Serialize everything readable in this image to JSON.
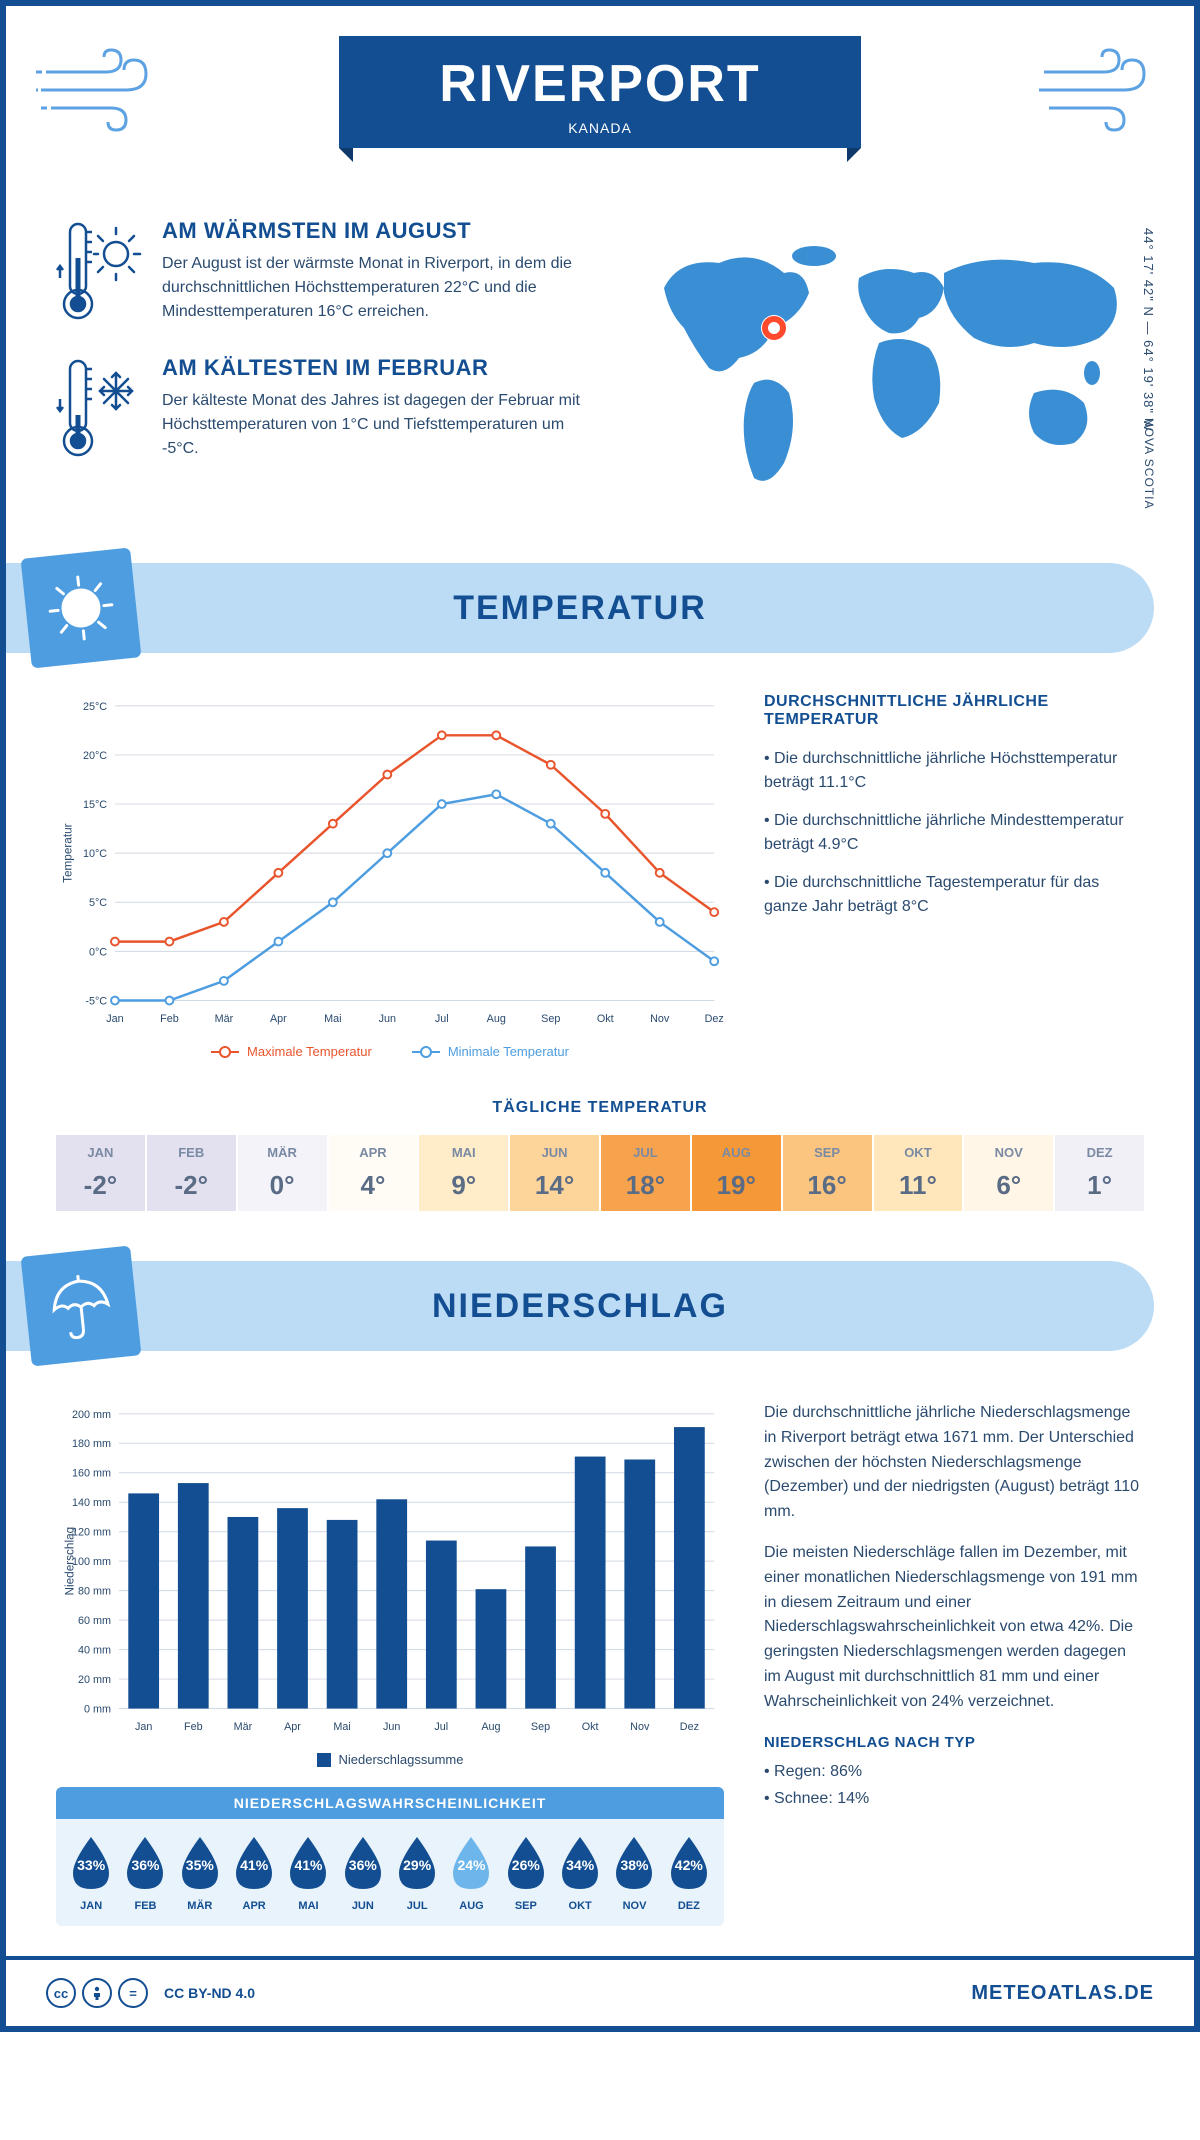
{
  "header": {
    "title": "RIVERPORT",
    "subtitle": "KANADA",
    "coords": "44° 17' 42\" N — 64° 19' 38\" W",
    "region": "NOVA SCOTIA"
  },
  "intro": {
    "warm": {
      "heading": "AM WÄRMSTEN IM AUGUST",
      "text": "Der August ist der wärmste Monat in Riverport, in dem die durchschnittlichen Höchsttemperaturen 22°C und die Mindesttemperaturen 16°C erreichen."
    },
    "cold": {
      "heading": "AM KÄLTESTEN IM FEBRUAR",
      "text": "Der kälteste Monat des Jahres ist dagegen der Februar mit Höchsttemperaturen von 1°C und Tiefsttemperaturen um -5°C."
    }
  },
  "colors": {
    "primary": "#124e91",
    "accent": "#4d9de0",
    "light": "#bcdcf5",
    "max_line": "#e8552d",
    "min_line": "#4d9de0",
    "bar": "#124e91",
    "grid": "#d0d8e2"
  },
  "months": [
    "Jan",
    "Feb",
    "Mär",
    "Apr",
    "Mai",
    "Jun",
    "Jul",
    "Aug",
    "Sep",
    "Okt",
    "Nov",
    "Dez"
  ],
  "months_upper": [
    "JAN",
    "FEB",
    "MÄR",
    "APR",
    "MAI",
    "JUN",
    "JUL",
    "AUG",
    "SEP",
    "OKT",
    "NOV",
    "DEZ"
  ],
  "temperature": {
    "section_title": "TEMPERATUR",
    "yaxis_label": "Temperatur",
    "ylim": [
      -5,
      25
    ],
    "ytick_step": 5,
    "ytick_suffix": "°C",
    "max_series": [
      1,
      1,
      3,
      8,
      13,
      18,
      22,
      22,
      19,
      14,
      8,
      4
    ],
    "min_series": [
      -5,
      -5,
      -3,
      1,
      5,
      10,
      15,
      16,
      13,
      8,
      3,
      -1
    ],
    "legend_max": "Maximale Temperatur",
    "legend_min": "Minimale Temperatur",
    "info": {
      "heading": "DURCHSCHNITTLICHE JÄHRLICHE TEMPERATUR",
      "bullets": [
        "Die durchschnittliche jährliche Höchsttemperatur beträgt 11.1°C",
        "Die durchschnittliche jährliche Mindesttemperatur beträgt 4.9°C",
        "Die durchschnittliche Tagestemperatur für das ganze Jahr beträgt 8°C"
      ]
    },
    "daily": {
      "heading": "TÄGLICHE TEMPERATUR",
      "values": [
        -2,
        -2,
        0,
        4,
        9,
        14,
        18,
        19,
        16,
        11,
        6,
        1
      ],
      "bg_colors": [
        "#e3e0f0",
        "#e3e0f0",
        "#f4f3f9",
        "#fffcf6",
        "#ffecc9",
        "#fdd499",
        "#f7a24d",
        "#f59838",
        "#fbc580",
        "#ffe7bb",
        "#fff6e7",
        "#f2f0f7"
      ]
    }
  },
  "precipitation": {
    "section_title": "NIEDERSCHLAG",
    "yaxis_label": "Niederschlag",
    "ylim": [
      0,
      200
    ],
    "ytick_step": 20,
    "ytick_suffix": " mm",
    "values": [
      146,
      153,
      130,
      136,
      128,
      142,
      114,
      81,
      110,
      171,
      169,
      191
    ],
    "legend": "Niederschlagssumme",
    "paragraphs": [
      "Die durchschnittliche jährliche Niederschlagsmenge in Riverport beträgt etwa 1671 mm. Der Unterschied zwischen der höchsten Niederschlagsmenge (Dezember) und der niedrigsten (August) beträgt 110 mm.",
      "Die meisten Niederschläge fallen im Dezember, mit einer monatlichen Niederschlagsmenge von 191 mm in diesem Zeitraum und einer Niederschlagswahrscheinlichkeit von etwa 42%. Die geringsten Niederschlagsmengen werden dagegen im August mit durchschnittlich 81 mm und einer Wahrscheinlichkeit von 24% verzeichnet."
    ],
    "type_heading": "NIEDERSCHLAG NACH TYP",
    "type_bullets": [
      "Regen: 86%",
      "Schnee: 14%"
    ],
    "probability": {
      "heading": "NIEDERSCHLAGSWAHRSCHEINLICHKEIT",
      "values": [
        33,
        36,
        35,
        41,
        41,
        36,
        29,
        24,
        26,
        34,
        38,
        42
      ],
      "min_index": 7,
      "color_normal": "#124e91",
      "color_min": "#6db6eb"
    }
  },
  "footer": {
    "license": "CC BY-ND 4.0",
    "site": "METEOATLAS.DE"
  }
}
